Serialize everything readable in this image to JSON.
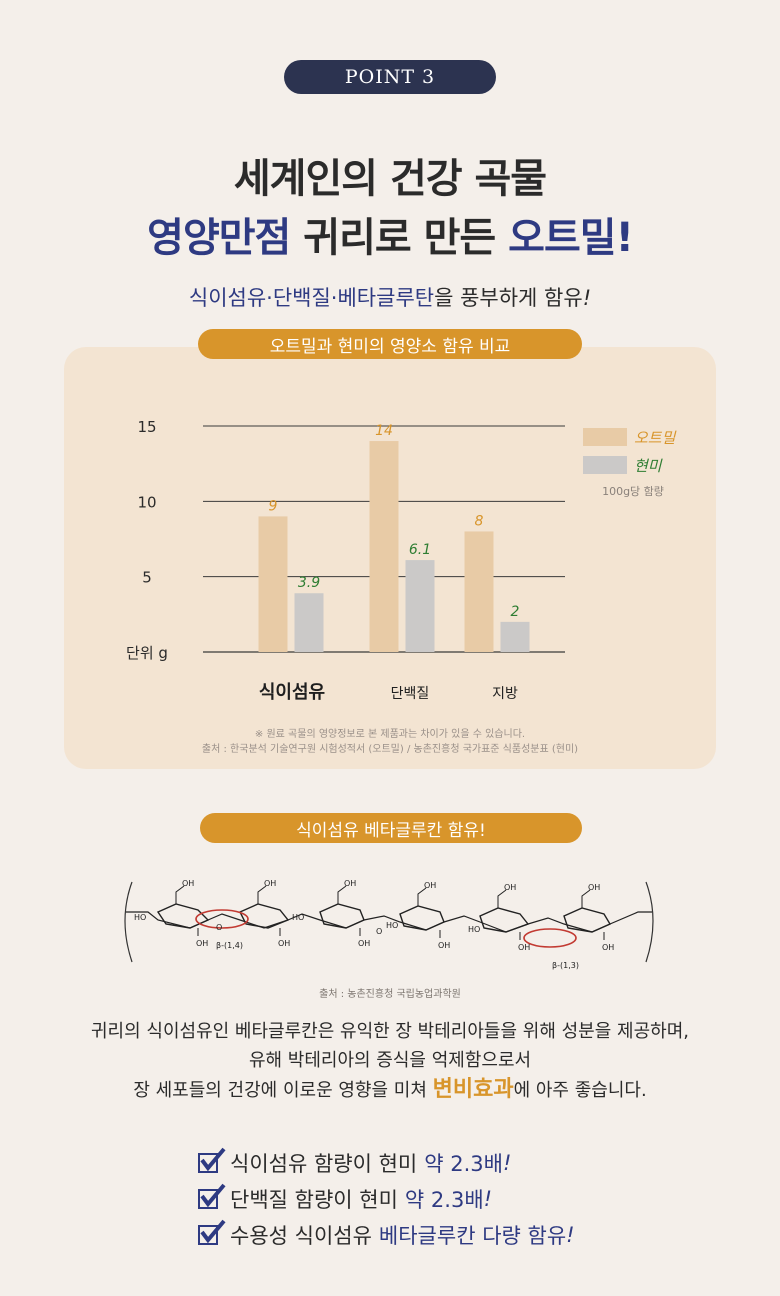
{
  "point_label": "POINT 3",
  "headline": {
    "line1": "세계인의 건강 곡물",
    "line2_part1": "영양만점",
    "line2_part2": "귀리로 만든",
    "line2_part3": "오트밀!"
  },
  "subline": {
    "highlight": "식이섬유·단백질·베타글루탄",
    "rest": "을 풍부하게 함유",
    "exclaim": "!"
  },
  "compare_title": "오트밀과 현미의 영양소 함유 비교",
  "chart_data": {
    "type": "bar",
    "title": "오트밀과 현미의 영양소 함유 비교",
    "ylabel": "단위 g",
    "ylim": [
      0,
      15
    ],
    "yticks": [
      5,
      10,
      15
    ],
    "categories": [
      "식이섬유",
      "단백질",
      "지방"
    ],
    "series": [
      {
        "name": "오트밀",
        "values": [
          9,
          14,
          8
        ],
        "value_labels": [
          "9",
          "14",
          "8"
        ],
        "color": "#e8cba6",
        "label_color": "#d8952b"
      },
      {
        "name": "현미",
        "values": [
          3.9,
          6.1,
          2
        ],
        "value_labels": [
          "3.9",
          "6.1",
          "2"
        ],
        "color": "#cbc9c8",
        "label_color": "#2e7d32"
      }
    ],
    "legend_note": "100g당 함량",
    "legend_position": "top-right",
    "grid": true
  },
  "chart_notes": {
    "line1": "※ 원료 곡물의 영양정보로 본 제품과는 차이가 있을 수 있습니다.",
    "line2": "출처 : 한국분석 기술연구원 시험성적서 (오트밀) / 농촌진흥청 국가표준 식품성분표 (현미)"
  },
  "beta_title": "식이섬유 베타글루칸 함유!",
  "molecule": {
    "oh": "OH",
    "ho": "HO",
    "o": "O",
    "label_left": "β-(1,4)",
    "label_right": "β-(1,3)",
    "source": "출처 : 농촌진흥청 국립농업과학원"
  },
  "body": {
    "line1": "귀리의 식이섬유인 베타글루칸은 유익한 장 박테리아들을 위해 성분을 제공하며,",
    "line2": "유해 박테리아의 증식을 억제함으로서",
    "line3_pre": "장 세포들의 건강에 이로운 영향을 미쳐",
    "line3_highlight": "변비효과",
    "line3_post": "에 아주 좋습니다."
  },
  "checks": [
    {
      "text": "식이섬유 함량이 현미",
      "highlight": "약 2.3배",
      "exclaim": "!"
    },
    {
      "text": "단백질 함량이 현미",
      "highlight": "약 2.3배",
      "exclaim": "!"
    },
    {
      "text": "수용성 식이섬유",
      "highlight": "베타글루칸 다량 함유",
      "exclaim": "!"
    }
  ]
}
